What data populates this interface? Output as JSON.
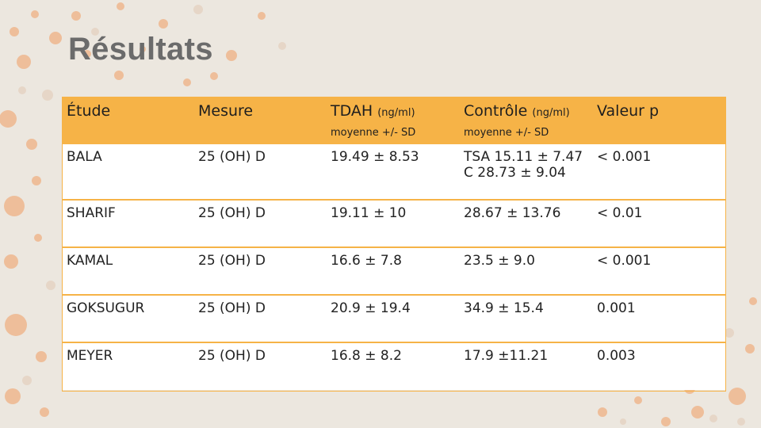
{
  "slide": {
    "title": "Résultats",
    "accent_color": "#f6b347",
    "dot_colors": [
      "#eebe9a",
      "#e6d6c7",
      "#f0c7a7"
    ]
  },
  "table": {
    "headers": {
      "etude": "Étude",
      "mesure": "Mesure",
      "tdah": "TDAH",
      "tdah_unit": "(ng/ml)",
      "tdah_sub": "moyenne +/- SD",
      "controle": "Contrôle",
      "controle_unit": "(ng/ml)",
      "controle_sub": "moyenne +/- SD",
      "pvalue": "Valeur p"
    },
    "rows": [
      {
        "etude": "BALA",
        "mesure": "25 (OH) D",
        "tdah": "19.49 ± 8.53",
        "controle_line1": "TSA 15.11 ± 7.47",
        "controle_line2": "C 28.73 ± 9.04",
        "pvalue": "< 0.001"
      },
      {
        "etude": "SHARIF",
        "mesure": "25 (OH) D",
        "tdah": "19.11 ± 10",
        "controle": "28.67 ± 13.76",
        "pvalue": "< 0.01"
      },
      {
        "etude": "KAMAL",
        "mesure": "25 (OH) D",
        "tdah": "16.6 ± 7.8",
        "controle": "23.5 ± 9.0",
        "pvalue": "< 0.001"
      },
      {
        "etude": "GOKSUGUR",
        "mesure": "25 (OH) D",
        "tdah": "20.9 ± 19.4",
        "controle": "34.9 ± 15.4",
        "pvalue": "0.001"
      },
      {
        "etude": "MEYER",
        "mesure": "25 (OH) D",
        "tdah": "16.8 ± 8.2",
        "controle": "17.9 ±11.21",
        "pvalue": "0.003"
      }
    ]
  }
}
